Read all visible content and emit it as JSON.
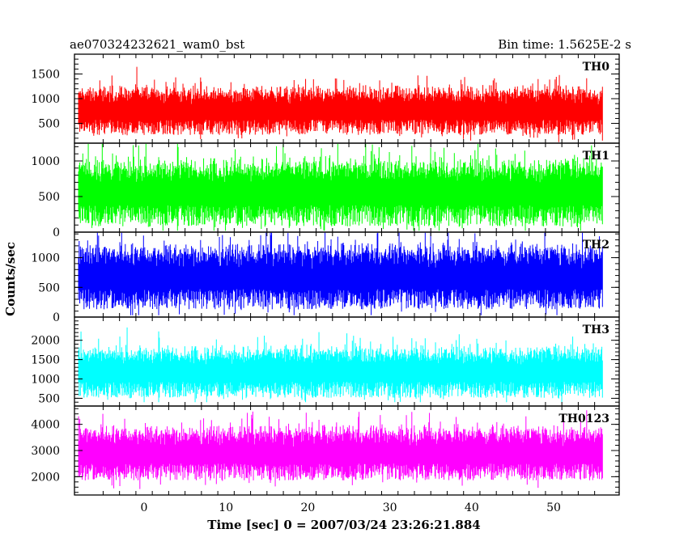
{
  "header": {
    "left": "ae070324232621_wam0_bst",
    "right": "Bin time: 1.5625E-2 s"
  },
  "chart_data": {
    "type": "line",
    "xlabel": "Time [sec] 0 = 2007/03/24 23:26:21.884",
    "ylabel": "Counts/sec",
    "xlim": [
      -8.5,
      58.0
    ],
    "data_x_range": [
      -8.0,
      56.0
    ],
    "bin_time_s": 0.015625,
    "x_ticks": [
      0,
      10,
      20,
      30,
      40,
      50
    ],
    "x_tick_labels": [
      "0",
      "10",
      "20",
      "30",
      "40",
      "50"
    ],
    "panels": [
      {
        "name": "TH0",
        "color": "#ff0000",
        "ylim": [
          100,
          1900
        ],
        "y_ticks": [
          500,
          1000,
          1500
        ],
        "y_tick_labels": [
          "500",
          "1000",
          "1500"
        ],
        "mean": 760,
        "spread": 340,
        "max": 1890,
        "min": 120
      },
      {
        "name": "TH1",
        "color": "#00ff00",
        "ylim": [
          0,
          1250
        ],
        "y_ticks": [
          0,
          500,
          1000
        ],
        "y_tick_labels": [
          "0",
          "500",
          "1000"
        ],
        "mean": 560,
        "spread": 330,
        "max": 1240,
        "min": 20
      },
      {
        "name": "TH2",
        "color": "#0000ff",
        "ylim": [
          0,
          1430
        ],
        "y_ticks": [
          0,
          500,
          1000
        ],
        "y_tick_labels": [
          "0",
          "500",
          "1000"
        ],
        "mean": 680,
        "spread": 380,
        "max": 1420,
        "min": 30
      },
      {
        "name": "TH3",
        "color": "#00ffff",
        "ylim": [
          300,
          2600
        ],
        "y_ticks": [
          500,
          1000,
          1500,
          2000
        ],
        "y_tick_labels": [
          "500",
          "1000",
          "1500",
          "2000"
        ],
        "mean": 1180,
        "spread": 460,
        "max": 2580,
        "min": 400
      },
      {
        "name": "TH0123",
        "color": "#ff00ff",
        "ylim": [
          1300,
          4700
        ],
        "y_ticks": [
          2000,
          3000,
          4000
        ],
        "y_tick_labels": [
          "2000",
          "3000",
          "4000"
        ],
        "mean": 2900,
        "spread": 720,
        "max": 4680,
        "min": 1400
      }
    ]
  }
}
